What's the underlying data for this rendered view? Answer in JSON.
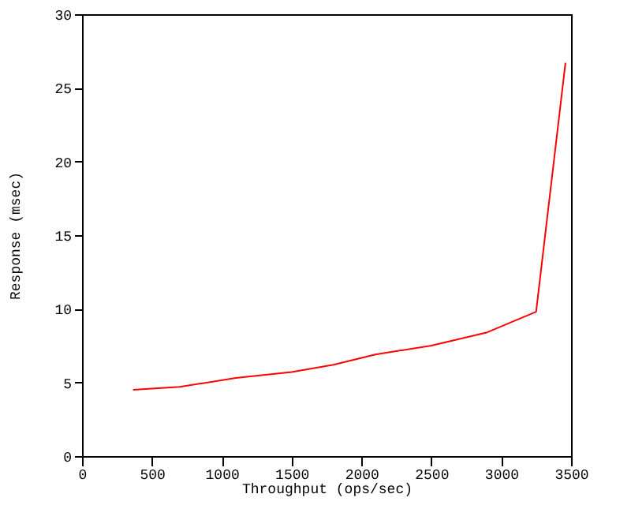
{
  "chart_data": {
    "type": "line",
    "xlabel": "Throughput (ops/sec)",
    "ylabel": "Response (msec)",
    "x": [
      365,
      700,
      1100,
      1500,
      1800,
      2100,
      2500,
      2900,
      3250,
      3460
    ],
    "series": [
      {
        "color": "#ff0000",
        "values": [
          4.5,
          4.7,
          5.3,
          5.7,
          6.2,
          6.9,
          7.5,
          8.4,
          9.8,
          26.7
        ]
      }
    ],
    "xlim": [
      0,
      3500
    ],
    "xticks": [
      0,
      500,
      1000,
      1500,
      2000,
      2500,
      3000,
      3500
    ],
    "ylim": [
      0,
      30
    ],
    "yticks": [
      0,
      5,
      10,
      15,
      20,
      25,
      30
    ],
    "grid": false,
    "legend": false,
    "marker": "none",
    "line_style": "solid"
  }
}
